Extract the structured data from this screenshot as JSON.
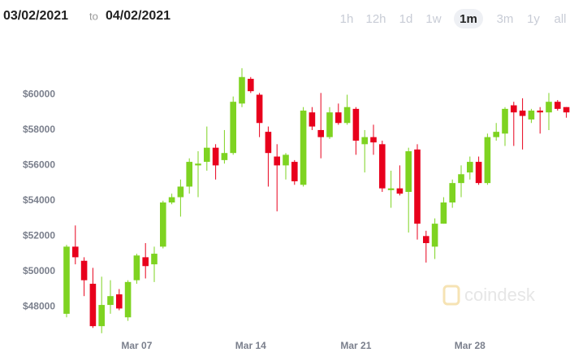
{
  "header": {
    "from": "03/02/2021",
    "sep": "to",
    "to": "04/02/2021"
  },
  "range_buttons": [
    "1h",
    "12h",
    "1d",
    "1w",
    "1m",
    "3m",
    "1y",
    "all"
  ],
  "selected_range": "1m",
  "chart_data": {
    "type": "candlestick",
    "watermark": "coindesk",
    "up_color": "#7ed321",
    "down_color": "#e8001c",
    "categories": [
      null,
      null,
      null,
      null,
      null,
      null,
      null,
      null,
      "Mar 07",
      null,
      null,
      null,
      null,
      null,
      null,
      null,
      null,
      null,
      null,
      null,
      null,
      "Mar 14",
      null,
      null,
      null,
      null,
      null,
      null,
      null,
      null,
      null,
      null,
      null,
      "Mar 21",
      null,
      null,
      null,
      null,
      null,
      null,
      null,
      null,
      null,
      null,
      null,
      null,
      "Mar 28",
      null,
      null,
      null,
      null,
      null,
      null,
      null,
      null,
      null,
      null,
      null
    ],
    "open": [
      47600,
      51400,
      50600,
      49300,
      46900,
      48100,
      48700,
      47400,
      49500,
      50800,
      50400,
      51400,
      53900,
      54200,
      54800,
      56000,
      56200,
      57000,
      56300,
      56700,
      59500,
      60900,
      60000,
      57900,
      56500,
      56000,
      56200,
      54900,
      59000,
      58000,
      57600,
      59000,
      58400,
      59200,
      57200,
      57600,
      57200,
      54600,
      54700,
      54500,
      56900,
      52000,
      51400,
      52700,
      53900,
      55000,
      55600,
      56200,
      55000,
      57600,
      57800,
      59400,
      59100,
      58600,
      59100,
      59000,
      59600,
      59300
    ],
    "high": [
      51500,
      52600,
      50800,
      50200,
      49700,
      49500,
      49000,
      49500,
      51000,
      51600,
      51400,
      54000,
      54400,
      55200,
      56400,
      56800,
      58200,
      57200,
      58000,
      59900,
      61500,
      61000,
      60100,
      58200,
      57200,
      56700,
      56300,
      59300,
      59300,
      60100,
      59300,
      59500,
      60000,
      59300,
      58000,
      58300,
      57400,
      55700,
      56000,
      57000,
      57200,
      52300,
      53000,
      54200,
      55200,
      56000,
      56500,
      56500,
      57800,
      58400,
      59300,
      59600,
      59800,
      59200,
      59300,
      60100,
      59700,
      59300
    ],
    "low": [
      47400,
      50400,
      48600,
      46800,
      46500,
      47600,
      47800,
      47200,
      49300,
      49600,
      49400,
      51300,
      53800,
      53100,
      54400,
      54200,
      55700,
      55200,
      56100,
      56600,
      59300,
      60100,
      57600,
      54800,
      53400,
      55200,
      54900,
      54800,
      58000,
      56400,
      57500,
      58300,
      58300,
      56600,
      55600,
      56600,
      54500,
      53600,
      54300,
      52200,
      51800,
      50500,
      50700,
      52700,
      53600,
      54200,
      55200,
      54900,
      54900,
      57400,
      57100,
      57100,
      56900,
      58400,
      57800,
      58000,
      59100,
      58700
    ],
    "close": [
      51400,
      50800,
      49500,
      46900,
      48100,
      48600,
      47900,
      49400,
      50900,
      50300,
      51000,
      53900,
      54200,
      54800,
      56200,
      56100,
      57000,
      56000,
      56700,
      59600,
      61000,
      60200,
      58400,
      56700,
      56000,
      56600,
      55100,
      59100,
      58200,
      57600,
      59000,
      58400,
      59300,
      57400,
      57600,
      57300,
      54700,
      54700,
      54400,
      56800,
      52700,
      51600,
      52700,
      53900,
      55000,
      55500,
      56200,
      55000,
      57600,
      57900,
      59200,
      59000,
      58800,
      59100,
      59000,
      59600,
      59200,
      59000
    ],
    "ylim": [
      46400,
      62600
    ],
    "yticks": [
      {
        "value": 48000,
        "label": "$48000"
      },
      {
        "value": 50000,
        "label": "$50000"
      },
      {
        "value": 52000,
        "label": "$52000"
      },
      {
        "value": 54000,
        "label": "$54000"
      },
      {
        "value": 56000,
        "label": "$56000"
      },
      {
        "value": 58000,
        "label": "$58000"
      },
      {
        "value": 60000,
        "label": "$60000"
      }
    ]
  }
}
